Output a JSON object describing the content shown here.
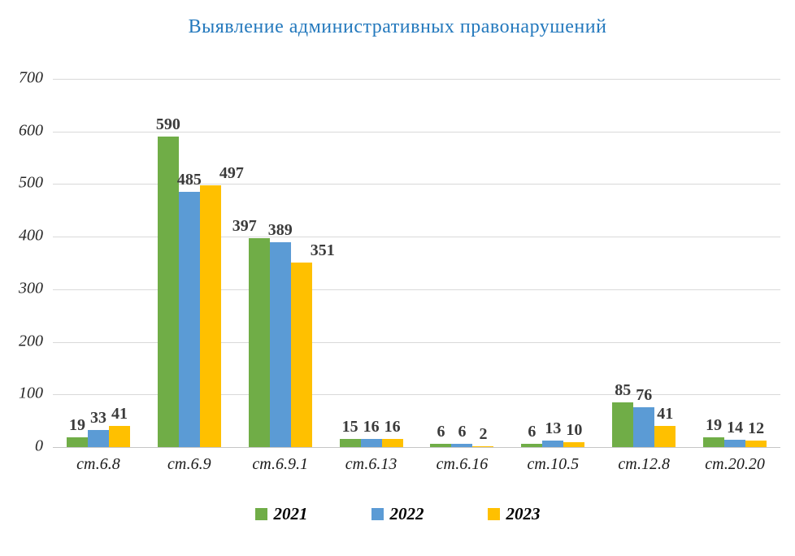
{
  "chart_data": {
    "type": "bar",
    "title": "Выявление административных правонарушений",
    "categories": [
      "ст.6.8",
      "ст.6.9",
      "ст.6.9.1",
      "ст.6.13",
      "ст.6.16",
      "ст.10.5",
      "ст.12.8",
      "ст.20.20"
    ],
    "series": [
      {
        "name": "2021",
        "color": "#70AD47",
        "values": [
          19,
          590,
          397,
          15,
          6,
          6,
          85,
          19
        ],
        "label_dx": [
          0,
          0,
          -18,
          0,
          0,
          0,
          0,
          0
        ]
      },
      {
        "name": "2022",
        "color": "#5B9BD5",
        "values": [
          33,
          485,
          389,
          16,
          6,
          13,
          76,
          14
        ],
        "label_dx": [
          0,
          0,
          0,
          0,
          0,
          0,
          0,
          0
        ]
      },
      {
        "name": "2023",
        "color": "#FFC000",
        "values": [
          41,
          497,
          351,
          16,
          2,
          10,
          41,
          12
        ],
        "label_dx": [
          0,
          26,
          26,
          0,
          0,
          0,
          0,
          0
        ]
      }
    ],
    "ylim": [
      0,
      700
    ],
    "ytick_step": 100,
    "grid": true,
    "legend_position": "bottom",
    "colors": {
      "title": "#2479BD",
      "axis_text": "#262626",
      "gridline": "#D9D9D9",
      "data_label": "#3B3B3B"
    }
  }
}
